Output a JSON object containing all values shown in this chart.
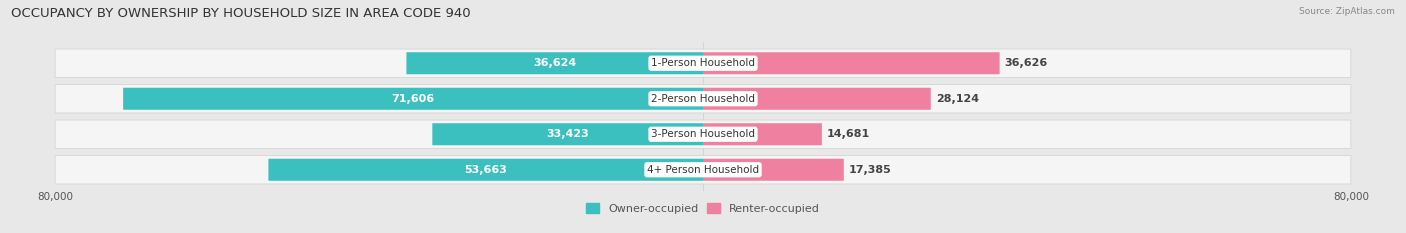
{
  "title": "OCCUPANCY BY OWNERSHIP BY HOUSEHOLD SIZE IN AREA CODE 940",
  "source": "Source: ZipAtlas.com",
  "categories": [
    "1-Person Household",
    "2-Person Household",
    "3-Person Household",
    "4+ Person Household"
  ],
  "owner_values": [
    36624,
    71606,
    33423,
    53663
  ],
  "renter_values": [
    36626,
    28124,
    14681,
    17385
  ],
  "max_scale": 80000,
  "owner_color": "#3BBFBF",
  "renter_color": "#F080A0",
  "background_color": "#e8e8e8",
  "row_bg_color": "#f2f2f2",
  "title_fontsize": 9.5,
  "label_fontsize": 8,
  "tick_fontsize": 7.5,
  "legend_fontsize": 8,
  "center_label_bg": "#ffffff",
  "source_fontsize": 6.5
}
